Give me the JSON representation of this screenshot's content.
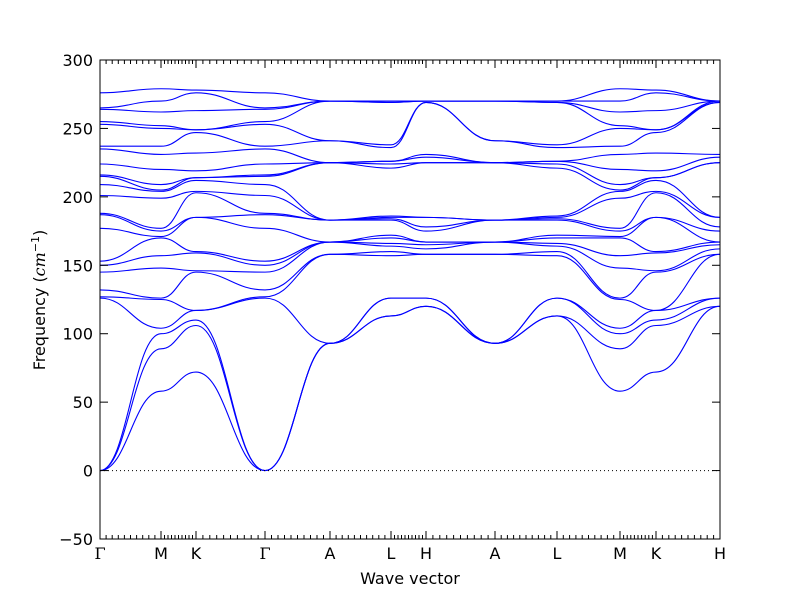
{
  "chart_data": {
    "type": "line",
    "xlabel": "Wave vector",
    "ylabel_main": "Frequency (",
    "ylabel_unit": "cm",
    "ylabel_exp": "−1",
    "ylabel_close": ")",
    "ylim": [
      -50,
      300
    ],
    "yticks": [
      -50,
      0,
      50,
      100,
      150,
      200,
      250,
      300
    ],
    "ytick_labels": [
      "−50",
      "0",
      "50",
      "100",
      "150",
      "200",
      "250",
      "300"
    ],
    "grid": false,
    "legend": "none",
    "line_color": "#0000ff",
    "zero_line": {
      "y": 0,
      "style": "dotted",
      "color": "#000000"
    },
    "segments": [
      {
        "from": "Γ",
        "to": "M",
        "from_tick": "Γ",
        "to_tick": "M"
      },
      {
        "from": "M",
        "to": "K",
        "from_tick": "M",
        "to_tick": "K"
      },
      {
        "from": "K",
        "to": "Γ",
        "from_tick": "K",
        "to_tick": "Γ"
      },
      {
        "from": "Γ",
        "to": "A",
        "from_tick": "Γ",
        "to_tick": "A"
      },
      {
        "from": "A",
        "to": "L",
        "from_tick": "A",
        "to_tick": "L"
      },
      {
        "from": "L",
        "to": "H",
        "from_tick": "L",
        "to_tick": "H"
      },
      {
        "from": "H",
        "to": "A",
        "from_tick": "H",
        "to_tick": "A"
      },
      {
        "from": "A",
        "to": "L",
        "from_tick": "A",
        "to_tick": "L"
      },
      {
        "from": "L",
        "to": "M",
        "from_tick": "L",
        "to_tick": "M"
      },
      {
        "from": "M",
        "to": "K",
        "from_tick": "M",
        "to_tick": "K"
      },
      {
        "from": "K",
        "to": "H",
        "from_tick": "K",
        "to_tick": "H"
      }
    ],
    "xtick_labels": [
      "Γ",
      "M",
      "K",
      "Γ",
      "A",
      "L",
      "H",
      "A",
      "L",
      "M",
      "K",
      "H"
    ],
    "point_frequencies": {
      "Γ": [
        0,
        0,
        0,
        126,
        127,
        132,
        145,
        150,
        153,
        177,
        187,
        188,
        201,
        209,
        215,
        216,
        224,
        235,
        237,
        253,
        255,
        264,
        265,
        276
      ],
      "M": [
        58,
        89,
        100,
        104,
        125,
        126,
        148,
        157,
        170,
        171,
        175,
        177,
        199,
        204,
        205,
        209,
        220,
        231,
        237,
        250,
        252,
        262,
        270,
        279
      ],
      "K": [
        72,
        106,
        110,
        117,
        117,
        145,
        146,
        159,
        160,
        185,
        185,
        203,
        204,
        212,
        214,
        214,
        219,
        232,
        247,
        249,
        249,
        263,
        276,
        278
      ],
      "A": [
        93,
        93,
        93,
        93,
        158,
        158,
        167,
        167,
        167,
        167,
        183,
        183,
        183,
        183,
        225,
        225,
        225,
        225,
        241,
        241,
        270,
        270,
        270,
        270
      ],
      "L": [
        113,
        113,
        126,
        126,
        157,
        160,
        164,
        166,
        170,
        172,
        183,
        184,
        185,
        186,
        221,
        224,
        226,
        226,
        236,
        238,
        269,
        269,
        270,
        270
      ],
      "H": [
        120,
        120,
        126,
        126,
        158,
        158,
        162,
        165,
        167,
        167,
        175,
        178,
        185,
        185,
        225,
        225,
        229,
        231,
        269,
        269,
        270,
        270,
        270,
        270
      ]
    }
  }
}
